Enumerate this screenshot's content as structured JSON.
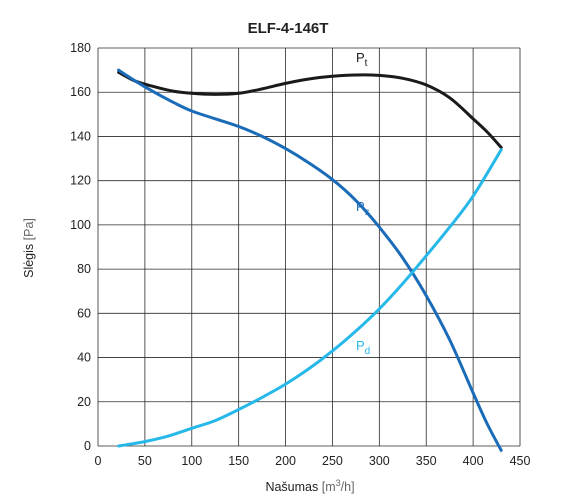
{
  "chart_data": {
    "type": "line",
    "title": "ELF-4-146T",
    "xlabel": "Našumas",
    "xunit_pre": "[m",
    "xunit_sup": "3",
    "xunit_post": "/h]",
    "ylabel": "Slėgis",
    "yunit": "[Pa]",
    "xlim": [
      0,
      450
    ],
    "ylim": [
      0,
      180
    ],
    "xticks": [
      0,
      50,
      100,
      150,
      200,
      250,
      300,
      350,
      400,
      450
    ],
    "yticks": [
      0,
      20,
      40,
      60,
      80,
      100,
      120,
      140,
      160,
      180
    ],
    "grid": true,
    "series": [
      {
        "name": "P",
        "sub": "t",
        "color": "#1a1a1a",
        "x": [
          22,
          40,
          60,
          80,
          100,
          125,
          150,
          175,
          200,
          225,
          250,
          275,
          300,
          325,
          350,
          375,
          400,
          415,
          430
        ],
        "y": [
          169,
          165,
          162.5,
          160.5,
          159.5,
          159,
          159.5,
          161.5,
          164,
          166,
          167.2,
          167.8,
          167.6,
          166.3,
          163.3,
          157.5,
          148,
          142,
          135
        ]
      },
      {
        "name": "P",
        "sub": "s",
        "color": "#1a6bb8",
        "x": [
          22,
          40,
          60,
          80,
          100,
          125,
          150,
          175,
          200,
          225,
          250,
          275,
          300,
          325,
          350,
          375,
          400,
          415,
          430
        ],
        "y": [
          170,
          165,
          160,
          155.5,
          151.5,
          148,
          144.5,
          140,
          134.5,
          128,
          120.5,
          111,
          99,
          85,
          68,
          48,
          24,
          10,
          -2
        ]
      },
      {
        "name": "P",
        "sub": "d",
        "color": "#27b8ea",
        "x": [
          22,
          50,
          75,
          100,
          125,
          150,
          175,
          200,
          225,
          250,
          275,
          300,
          325,
          350,
          375,
          400,
          430
        ],
        "y": [
          0,
          2,
          4.5,
          8,
          11.5,
          16.5,
          22,
          28,
          35,
          43,
          52,
          62,
          73.5,
          86,
          99,
          113,
          134
        ]
      }
    ]
  }
}
